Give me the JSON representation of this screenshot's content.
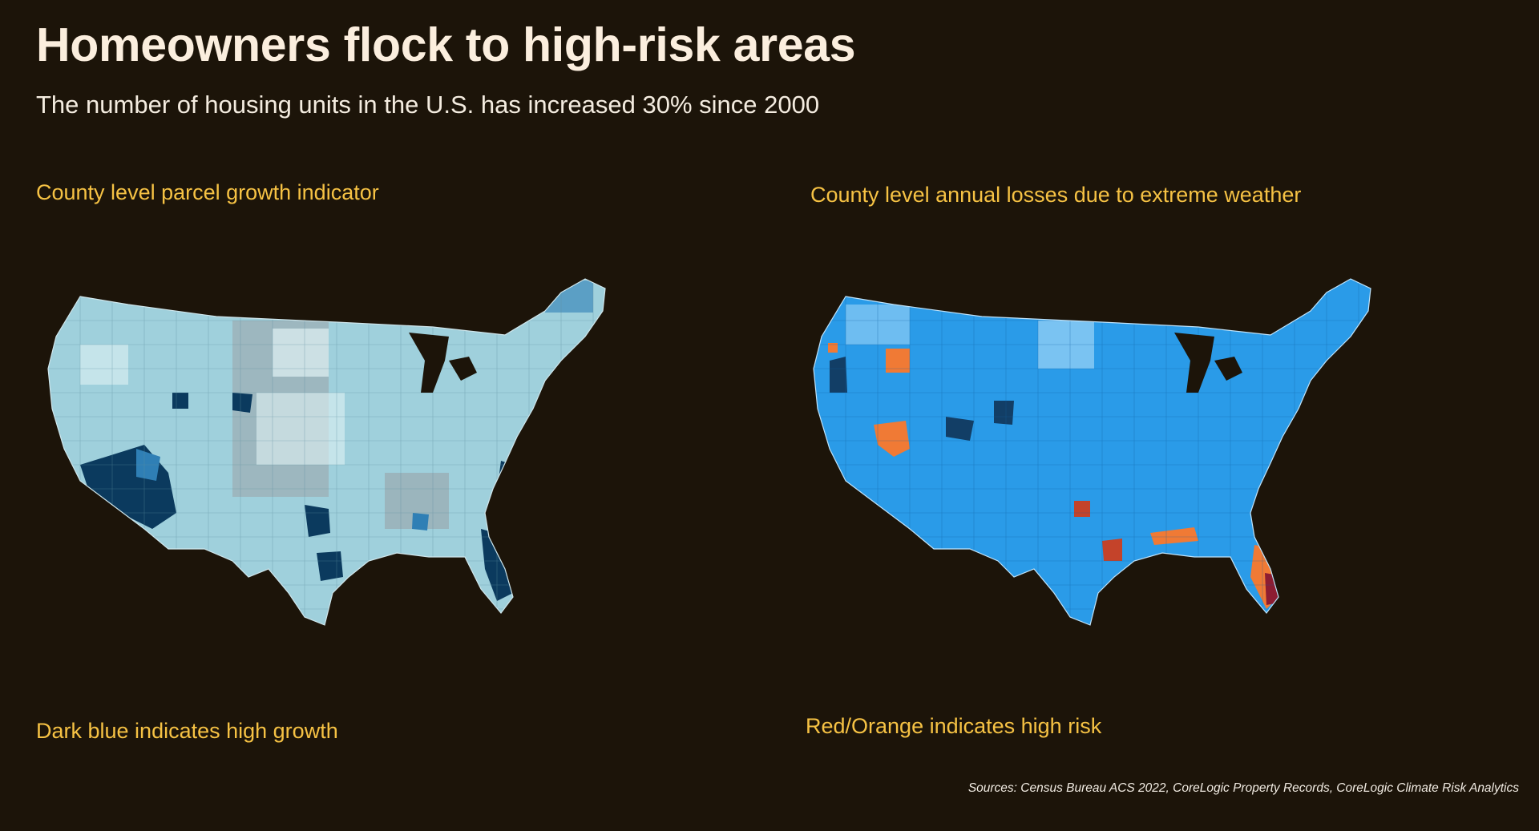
{
  "title": "Homeowners flock to high-risk areas",
  "subtitle": "The number of housing units in the U.S. has increased 30% since 2000",
  "left_map": {
    "heading": "County level parcel growth indicator",
    "note": "Dark blue indicates high growth",
    "colors": {
      "base": "#9fd0dc",
      "light": "#dff1f4",
      "gray": "#9aa3a8",
      "mid": "#2f7fb5",
      "dark": "#0b3a5e"
    }
  },
  "right_map": {
    "heading": "County level annual losses due to extreme weather",
    "note": "Red/Orange indicates high risk",
    "colors": {
      "base": "#2a9be8",
      "light": "#9dd4f7",
      "dark": "#123e66",
      "orange": "#f07a35",
      "red": "#c4432a",
      "crimson": "#8c1d32"
    }
  },
  "sources": "Sources: Census Bureau ACS 2022, CoreLogic Property Records, CoreLogic Climate Risk Analytics"
}
